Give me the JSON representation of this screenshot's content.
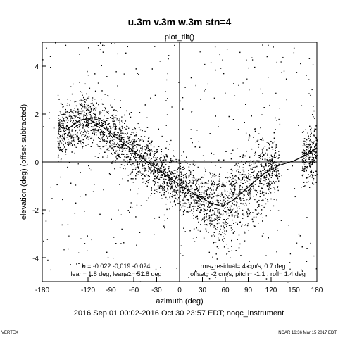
{
  "chart_data": {
    "type": "scatter",
    "title": "u.3m v.3m w.3m stn=4",
    "subtitle": "plot_tilt()",
    "xlabel": "azimuth (deg)",
    "ylabel": "elevation (deg)  (offset subtracted)",
    "xlim": [
      -180,
      180
    ],
    "ylim": [
      -5,
      5
    ],
    "x_ticks": [
      -180,
      -120,
      -90,
      -60,
      -30,
      0,
      30,
      60,
      90,
      120,
      150,
      180
    ],
    "y_ticks": [
      -4,
      -2,
      0,
      2,
      4
    ],
    "grid": false,
    "reference_lines": {
      "x": 0,
      "y": 0
    },
    "fit_curve": {
      "x": [
        -150,
        -130,
        -120,
        -100,
        -80,
        -60,
        -40,
        -20,
        0,
        20,
        40,
        55,
        70,
        90,
        110,
        130,
        150,
        170,
        180
      ],
      "y": [
        1.3,
        1.75,
        1.8,
        1.45,
        0.95,
        0.45,
        -0.05,
        -0.5,
        -0.95,
        -1.35,
        -1.7,
        -1.85,
        -1.6,
        -1.05,
        -0.5,
        -0.15,
        0.05,
        0.35,
        0.6
      ]
    },
    "points_summary": "dense scatter cloud following the fit curve with noise",
    "annotations": {
      "left_line1": "b = -0.022 -0.019 -0.024",
      "left_line2": "lean= 1.8 deg, leanaz= 51.8 deg",
      "right_line1": "rms_residual= 4 cm/s, 0.7 deg",
      "right_line2": "offset= -2 cm/s, pitch= -1.1 , roll= 1.4 deg"
    },
    "date_range": "2016 Sep 01 00:02-2016 Oct 30 23:57 EDT; noqc_instrument",
    "footer_left": "VERTEX",
    "footer_right": "NCAR 16:36 Mar 15 2017 EDT"
  }
}
